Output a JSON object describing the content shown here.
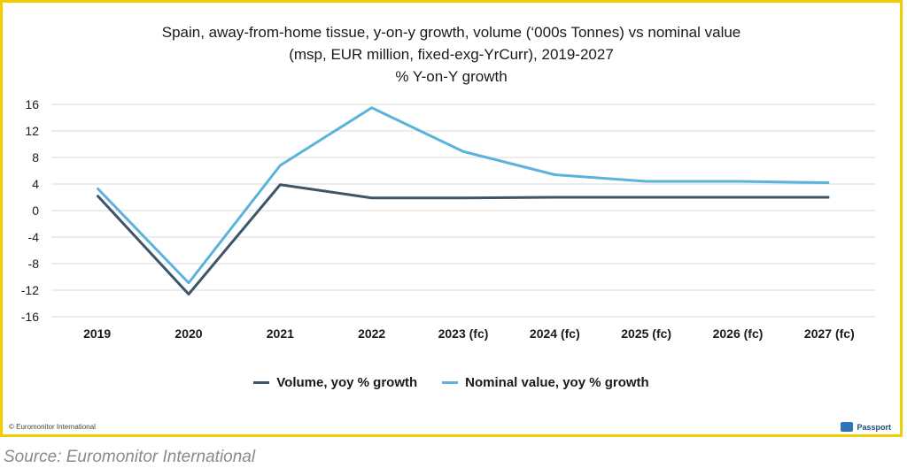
{
  "chart_data": {
    "type": "line",
    "title_lines": [
      "Spain, away-from-home tissue, y-on-y growth, volume (‘000s Tonnes) vs nominal value",
      "(msp, EUR million, fixed-exg-YrCurr), 2019-2027"
    ],
    "subtitle": "% Y-on-Y growth",
    "categories": [
      "2019",
      "2020",
      "2021",
      "2022",
      "2023 (fc)",
      "2024 (fc)",
      "2025 (fc)",
      "2026 (fc)",
      "2027 (fc)"
    ],
    "ylim": [
      -16,
      16
    ],
    "yticks": [
      "16",
      "12",
      "8",
      "4",
      "0",
      "-4",
      "-8",
      "-12",
      "-16"
    ],
    "ytick_values": [
      16,
      12,
      8,
      4,
      0,
      -4,
      -8,
      -12,
      -16
    ],
    "grid": true,
    "legend_position": "bottom",
    "series": [
      {
        "name": "Volume, yoy % growth",
        "color": "#3d5567",
        "values": [
          2.3,
          -12.6,
          3.9,
          1.9,
          1.9,
          2.0,
          2.0,
          2.0,
          2.0
        ]
      },
      {
        "name": "Nominal value, yoy % growth",
        "color": "#5bb3dc",
        "values": [
          3.4,
          -10.9,
          6.8,
          15.5,
          8.9,
          5.4,
          4.4,
          4.4,
          4.2
        ]
      }
    ]
  },
  "footer": {
    "copyright": "© Euromonitor International",
    "brand": "Passport",
    "source": "Source: Euromonitor International"
  }
}
